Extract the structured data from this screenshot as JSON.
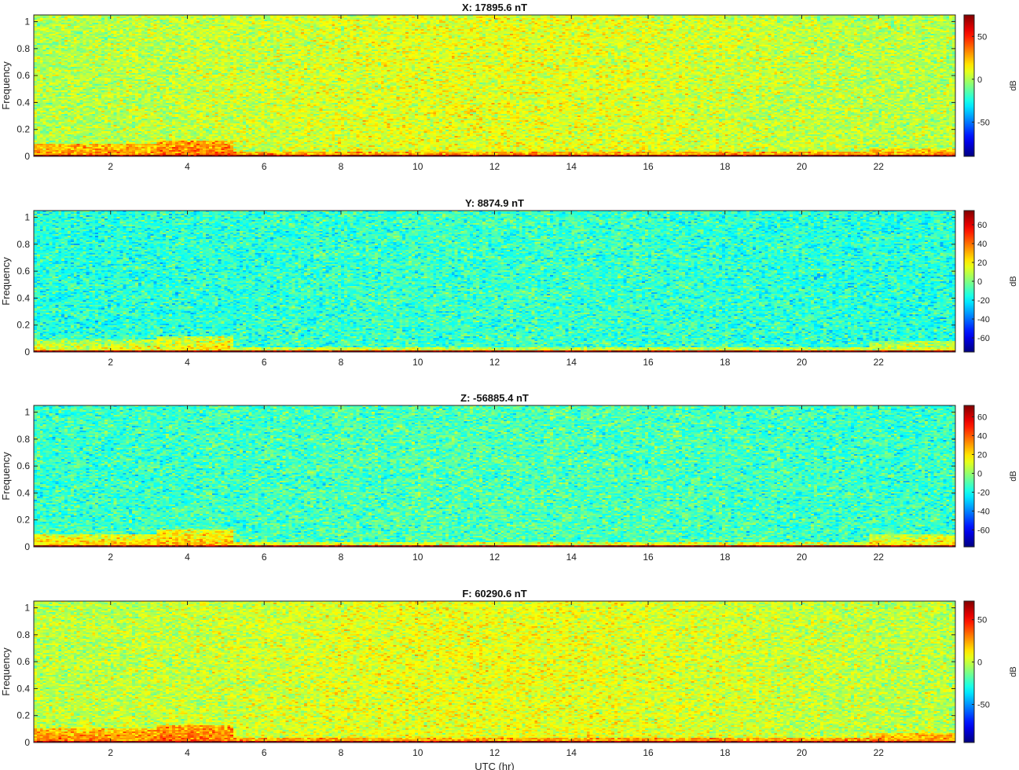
{
  "chart_data": [
    {
      "type": "heatmap",
      "title": "X: 17895.6 nT",
      "ylabel": "Frequency",
      "xlabel": "",
      "xlim": [
        0,
        24
      ],
      "ylim": [
        0,
        1.05
      ],
      "xticks": [
        "2",
        "4",
        "6",
        "8",
        "10",
        "12",
        "14",
        "16",
        "18",
        "20",
        "22"
      ],
      "yticks": [
        "0",
        "0.2",
        "0.4",
        "0.6",
        "0.8",
        "1"
      ],
      "colorbar": {
        "label": "dB",
        "range": [
          -90,
          75
        ],
        "ticks": [
          "50",
          "0",
          "-50"
        ],
        "tick_values": [
          50,
          0,
          -50
        ]
      },
      "background_db": 5,
      "low_freq_band": [
        {
          "x0": 0,
          "x1": 3.2,
          "f_top": 0.09,
          "db": 32
        },
        {
          "x0": 3.2,
          "x1": 5.2,
          "f_top": 0.12,
          "db": 38
        },
        {
          "x0": 21.8,
          "x1": 24,
          "f_top": 0.06,
          "db": 28
        }
      ]
    },
    {
      "type": "heatmap",
      "title": "Y: 8874.9 nT",
      "ylabel": "Frequency",
      "xlabel": "",
      "xlim": [
        0,
        24
      ],
      "ylim": [
        0,
        1.05
      ],
      "xticks": [
        "2",
        "4",
        "6",
        "8",
        "10",
        "12",
        "14",
        "16",
        "18",
        "20",
        "22"
      ],
      "yticks": [
        "0",
        "0.2",
        "0.4",
        "0.6",
        "0.8",
        "1"
      ],
      "colorbar": {
        "label": "dB",
        "range": [
          -75,
          75
        ],
        "ticks": [
          "60",
          "40",
          "20",
          "0",
          "-20",
          "-40",
          "-60"
        ],
        "tick_values": [
          60,
          40,
          20,
          0,
          -20,
          -40,
          -60
        ]
      },
      "background_db": -12,
      "low_freq_band": [
        {
          "x0": 0,
          "x1": 3.2,
          "f_top": 0.09,
          "db": 18
        },
        {
          "x0": 3.2,
          "x1": 5.2,
          "f_top": 0.12,
          "db": 22
        },
        {
          "x0": 21.8,
          "x1": 24,
          "f_top": 0.08,
          "db": 16
        }
      ]
    },
    {
      "type": "heatmap",
      "title": "Z: -56885.4 nT",
      "ylabel": "Frequency",
      "xlabel": "",
      "xlim": [
        0,
        24
      ],
      "ylim": [
        0,
        1.05
      ],
      "xticks": [
        "2",
        "4",
        "6",
        "8",
        "10",
        "12",
        "14",
        "16",
        "18",
        "20",
        "22"
      ],
      "yticks": [
        "0",
        "0.2",
        "0.4",
        "0.6",
        "0.8",
        "1"
      ],
      "colorbar": {
        "label": "dB",
        "range": [
          -78,
          72
        ],
        "ticks": [
          "60",
          "40",
          "20",
          "0",
          "-20",
          "-40",
          "-60"
        ],
        "tick_values": [
          60,
          40,
          20,
          0,
          -20,
          -40,
          -60
        ]
      },
      "background_db": -12,
      "low_freq_band": [
        {
          "x0": 0,
          "x1": 3.2,
          "f_top": 0.09,
          "db": 24
        },
        {
          "x0": 3.2,
          "x1": 5.2,
          "f_top": 0.13,
          "db": 28
        },
        {
          "x0": 21.8,
          "x1": 24,
          "f_top": 0.09,
          "db": 20
        }
      ]
    },
    {
      "type": "heatmap",
      "title": "F: 60290.6 nT",
      "ylabel": "Frequency",
      "xlabel": "UTC (hr)",
      "xlim": [
        0,
        24
      ],
      "ylim": [
        0,
        1.05
      ],
      "xticks": [
        "2",
        "4",
        "6",
        "8",
        "10",
        "12",
        "14",
        "16",
        "18",
        "20",
        "22"
      ],
      "yticks": [
        "0",
        "0.2",
        "0.4",
        "0.6",
        "0.8",
        "1"
      ],
      "colorbar": {
        "label": "dB",
        "range": [
          -95,
          72
        ],
        "ticks": [
          "50",
          "0",
          "-50"
        ],
        "tick_values": [
          50,
          0,
          -50
        ]
      },
      "background_db": 2,
      "low_freq_band": [
        {
          "x0": 0,
          "x1": 3.2,
          "f_top": 0.1,
          "db": 30
        },
        {
          "x0": 3.2,
          "x1": 5.2,
          "f_top": 0.13,
          "db": 36
        },
        {
          "x0": 21.8,
          "x1": 24,
          "f_top": 0.07,
          "db": 26
        }
      ]
    }
  ]
}
